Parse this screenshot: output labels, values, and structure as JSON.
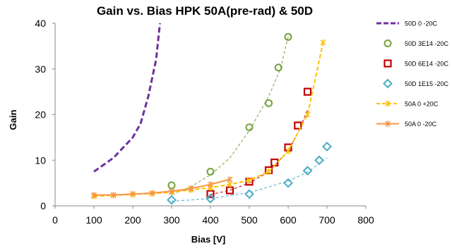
{
  "chart_data": {
    "type": "scatter",
    "title": "Gain vs. Bias HPK 50A(pre-rad) & 50D",
    "xlabel": "Bias [V]",
    "ylabel": "Gain",
    "xlim": [
      0,
      800
    ],
    "ylim": [
      0,
      40
    ],
    "xticks": [
      0,
      100,
      200,
      300,
      400,
      500,
      600,
      700,
      800
    ],
    "yticks": [
      0,
      10,
      20,
      30,
      40
    ],
    "grid": false,
    "legend": "right",
    "series": [
      {
        "name": "50D 0 -20C",
        "style": "dashed-line",
        "color": "#7030a0",
        "x": [
          100,
          150,
          200,
          220,
          240,
          260,
          270
        ],
        "y": [
          7.5,
          10.5,
          15,
          18,
          24,
          32,
          40
        ]
      },
      {
        "name": "50D 3E14 -20C",
        "style": "circle",
        "color": "#77a03c",
        "x": [
          300,
          400,
          500,
          550,
          575,
          600
        ],
        "y": [
          4.5,
          7.5,
          17.2,
          22.5,
          30.3,
          37
        ],
        "fit": {
          "x": [
            300,
            350,
            400,
            450,
            500,
            550,
            580,
            600
          ],
          "y": [
            2.5,
            4.2,
            6.8,
            10.5,
            16.5,
            24,
            30,
            37
          ]
        }
      },
      {
        "name": "50D 6E14 -20C",
        "style": "square",
        "color": "#c00000",
        "x": [
          400,
          450,
          500,
          550,
          565,
          600,
          625,
          650
        ],
        "y": [
          2.6,
          3.4,
          5.3,
          7.8,
          9.5,
          12.8,
          17.6,
          25
        ],
        "fit": {
          "x": [
            400,
            450,
            500,
            550,
            600,
            625,
            650
          ],
          "y": [
            2.5,
            3.4,
            5.0,
            7.5,
            12.0,
            16.0,
            21.0
          ]
        }
      },
      {
        "name": "50D 1E15 -20C",
        "style": "diamond",
        "color": "#4bacc6",
        "x": [
          300,
          400,
          500,
          600,
          650,
          680,
          700
        ],
        "y": [
          1.3,
          1.6,
          2.6,
          5,
          7.7,
          10,
          13
        ],
        "fit": {
          "x": [
            300,
            400,
            500,
            600,
            650,
            700
          ],
          "y": [
            1.0,
            1.6,
            2.9,
            5.4,
            7.4,
            10.5
          ]
        }
      },
      {
        "name": "50A 0 +20C",
        "style": "dashed-line-star",
        "color": "#ffc000",
        "x": [
          100,
          150,
          200,
          250,
          300,
          350,
          400,
          450,
          500,
          550,
          600,
          650,
          690
        ],
        "y": [
          2.1,
          2.3,
          2.5,
          2.7,
          3.0,
          3.5,
          4.0,
          4.7,
          5.6,
          7.5,
          12,
          20,
          35.8
        ]
      },
      {
        "name": "50A 0 -20C",
        "style": "solid-line-star",
        "color": "#f79646",
        "x": [
          100,
          150,
          200,
          250,
          300,
          350,
          400,
          450
        ],
        "y": [
          2.4,
          2.4,
          2.6,
          2.8,
          3.2,
          3.8,
          4.7,
          5.8
        ]
      }
    ]
  }
}
